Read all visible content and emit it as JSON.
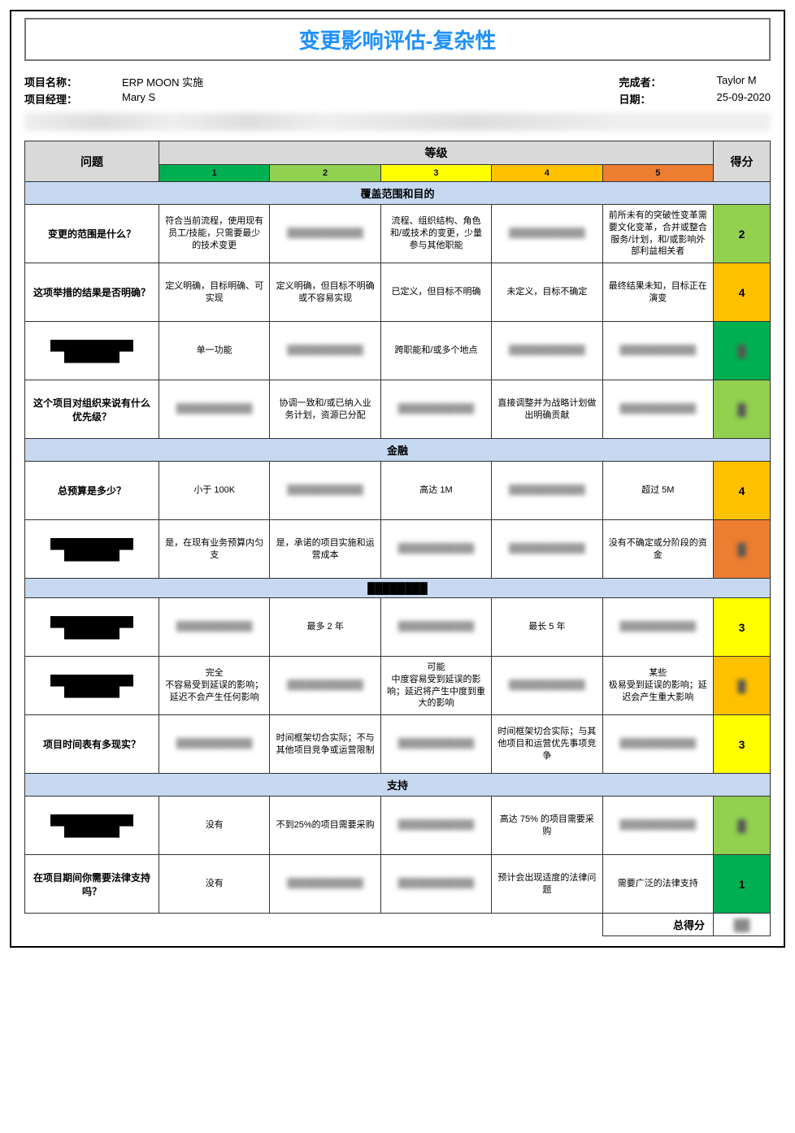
{
  "title": "变更影响评估-复杂性",
  "meta": {
    "project_name_label": "项目名称：",
    "project_name": "ERP MOON 实施",
    "project_manager_label": "项目经理：",
    "project_manager": "Mary S",
    "completed_by_label": "完成者：",
    "completed_by": "Taylor M",
    "date_label": "日期：",
    "date": "25-09-2020"
  },
  "headers": {
    "question": "问题",
    "rating": "等级",
    "score": "得分",
    "r1": "1",
    "r2": "2",
    "r3": "3",
    "r4": "4",
    "r5": "5"
  },
  "colors": {
    "r1": "#00b050",
    "r2": "#92d050",
    "r3": "#ffff00",
    "r4": "#ffc000",
    "r5": "#ed7d31",
    "section_bg": "#c6d9f1",
    "header_bg": "#d9d9d9",
    "title_color": "#1e90ff"
  },
  "sections": [
    {
      "title": "覆盖范围和目的",
      "rows": [
        {
          "q": "变更的范围是什么？",
          "cells": [
            "符合当前流程，使用现有员工/技能，只需要最少的技术变更",
            "[[BLUR]]",
            "流程、组织结构、角色和/或技术的变更，少量参与其他职能",
            "[[BLUR]]",
            "前所未有的突破性变革需要文化变革，合并或整合服务/计划，和/或影响外部利益相关者"
          ],
          "score": "2",
          "score_color": "2"
        },
        {
          "q": "这项举措的结果是否明确？",
          "cells": [
            "定义明确，目标明确、可实现",
            "定义明确，但目标不明确或不容易实现",
            "已定义，但目标不明确",
            "未定义，目标不确定",
            "最终结果未知，目标正在演变"
          ],
          "score": "4",
          "score_color": "4"
        },
        {
          "q": "[[BLUR]]",
          "cells": [
            "单一功能",
            "[[BLUR]]",
            "跨职能和/或多个地点",
            "[[BLUR]]",
            "[[BLUR]]"
          ],
          "score": "[[BLUR]]",
          "score_color": "1"
        },
        {
          "q": "这个项目对组织来说有什么优先级？",
          "cells": [
            "[[BLUR]]",
            "协调一致和/或已纳入业务计划，资源已分配",
            "[[BLUR]]",
            "直接调整并为战略计划做出明确贡献",
            "[[BLUR]]"
          ],
          "score": "[[BLUR]]",
          "score_color": "2"
        }
      ]
    },
    {
      "title": "金融",
      "rows": [
        {
          "q": "总预算是多少？",
          "cells": [
            "小于 100K",
            "[[BLUR]]",
            "高达 1M",
            "[[BLUR]]",
            "超过 5M"
          ],
          "score": "4",
          "score_color": "4"
        },
        {
          "q": "[[BLUR]]",
          "cells": [
            "是，在现有业务预算内匀支",
            "是，承诺的项目实施和运营成本",
            "[[BLUR]]",
            "[[BLUR]]",
            "没有不确定或分阶段的资金"
          ],
          "score": "[[BLUR]]",
          "score_color": "5"
        }
      ]
    },
    {
      "title": "[[BLUR]]",
      "rows": [
        {
          "q": "[[BLUR]]",
          "cells": [
            "[[BLUR]]",
            "最多 2 年",
            "[[BLUR]]",
            "最长 5 年",
            "[[BLUR]]"
          ],
          "score": "3",
          "score_color": "3"
        },
        {
          "q": "[[BLUR]]",
          "cells": [
            "完全\n不容易受到延误的影响；延迟不会产生任何影响",
            "[[BLUR]]",
            "可能\n中度容易受到延误的影响；延迟将产生中度到重大的影响",
            "[[BLUR]]",
            "某些\n极易受到延误的影响；延迟会产生重大影响"
          ],
          "score": "[[BLUR]]",
          "score_color": "4"
        },
        {
          "q": "项目时间表有多现实？",
          "cells": [
            "[[BLUR]]",
            "时间框架切合实际；不与其他项目竞争或运营限制",
            "[[BLUR]]",
            "时间框架切合实际；与其他项目和运营优先事项竞争",
            "[[BLUR]]"
          ],
          "score": "3",
          "score_color": "3"
        }
      ]
    },
    {
      "title": "支持",
      "rows": [
        {
          "q": "[[BLUR]]",
          "cells": [
            "没有",
            "不到25%的项目需要采购",
            "[[BLUR]]",
            "高达 75% 的项目需要采购",
            "[[BLUR]]"
          ],
          "score": "[[BLUR]]",
          "score_color": "2"
        },
        {
          "q": "在项目期间你需要法律支持吗？",
          "cells": [
            "没有",
            "[[BLUR]]",
            "[[BLUR]]",
            "预计会出现适度的法律问题",
            "需要广泛的法律支持"
          ],
          "score": "1",
          "score_color": "1"
        }
      ]
    }
  ],
  "total": {
    "label": "总得分",
    "value": "[[BLUR]]"
  }
}
